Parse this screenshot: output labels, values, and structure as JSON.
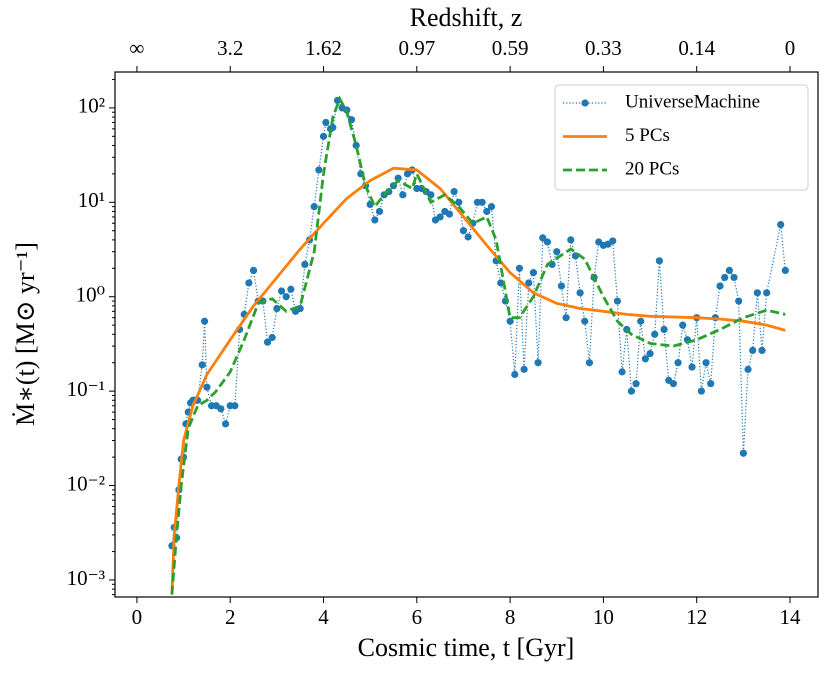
{
  "chart_data": {
    "type": "line",
    "xlabel": "Cosmic time, t [Gyr]",
    "ylabel": "Ṁ∗(t) [M⊙ yr⁻¹]",
    "xlim": [
      -0.47,
      14.6
    ],
    "ylim": [
      0.00066,
      240
    ],
    "log_y": true,
    "xticks": [
      0,
      2,
      4,
      6,
      8,
      10,
      12,
      14
    ],
    "yticks": [
      {
        "value": 0.001,
        "label": "10⁻³"
      },
      {
        "value": 0.01,
        "label": "10⁻²"
      },
      {
        "value": 0.1,
        "label": "10⁻¹"
      },
      {
        "value": 1,
        "label": "10⁰"
      },
      {
        "value": 10,
        "label": "10¹"
      },
      {
        "value": 100,
        "label": "10²"
      }
    ],
    "top_axis": {
      "label": "Redshift, z",
      "ticks": [
        {
          "value": 0,
          "label": "∞"
        },
        {
          "value": 2,
          "label": "3.2"
        },
        {
          "value": 4,
          "label": "1.62"
        },
        {
          "value": 6,
          "label": "0.97"
        },
        {
          "value": 8,
          "label": "0.59"
        },
        {
          "value": 10,
          "label": "0.33"
        },
        {
          "value": 12,
          "label": "0.14"
        },
        {
          "value": 14,
          "label": "0"
        }
      ]
    },
    "legend": "upper right",
    "series": [
      {
        "name": "UniverseMachine",
        "color": "#1f77b4",
        "linestyle": "dotted",
        "marker": "o",
        "x": [
          0.75,
          0.8,
          0.85,
          0.9,
          0.95,
          1.0,
          1.05,
          1.1,
          1.15,
          1.2,
          1.25,
          1.3,
          1.4,
          1.45,
          1.5,
          1.6,
          1.7,
          1.8,
          1.9,
          2.0,
          2.1,
          2.2,
          2.3,
          2.4,
          2.5,
          2.6,
          2.7,
          2.8,
          2.9,
          3.0,
          3.1,
          3.2,
          3.3,
          3.4,
          3.5,
          3.6,
          3.7,
          3.8,
          3.9,
          4.0,
          4.05,
          4.15,
          4.2,
          4.3,
          4.4,
          4.5,
          4.6,
          4.7,
          4.8,
          4.9,
          5.0,
          5.1,
          5.2,
          5.3,
          5.4,
          5.5,
          5.6,
          5.7,
          5.8,
          5.9,
          6.0,
          6.1,
          6.2,
          6.3,
          6.4,
          6.5,
          6.6,
          6.7,
          6.8,
          6.9,
          7.0,
          7.1,
          7.2,
          7.3,
          7.4,
          7.5,
          7.6,
          7.7,
          7.8,
          7.9,
          8.0,
          8.1,
          8.2,
          8.3,
          8.4,
          8.5,
          8.6,
          8.7,
          8.8,
          8.9,
          9.0,
          9.1,
          9.2,
          9.3,
          9.4,
          9.5,
          9.6,
          9.7,
          9.8,
          9.9,
          10.0,
          10.1,
          10.2,
          10.3,
          10.4,
          10.5,
          10.6,
          10.7,
          10.8,
          10.9,
          11.0,
          11.1,
          11.2,
          11.3,
          11.4,
          11.5,
          11.6,
          11.7,
          11.8,
          11.9,
          12.0,
          12.1,
          12.2,
          12.3,
          12.4,
          12.5,
          12.6,
          12.7,
          12.8,
          12.9,
          13.0,
          13.1,
          13.2,
          13.3,
          13.4,
          13.5,
          13.8,
          13.9
        ],
        "values": [
          0.0023,
          0.0036,
          0.0028,
          0.009,
          0.019,
          0.02,
          0.045,
          0.06,
          0.075,
          0.08,
          0.08,
          0.08,
          0.19,
          0.55,
          0.11,
          0.07,
          0.07,
          0.065,
          0.045,
          0.07,
          0.07,
          0.45,
          0.65,
          1.4,
          1.9,
          0.9,
          0.9,
          0.33,
          0.37,
          0.75,
          1.15,
          1.0,
          1.2,
          0.7,
          0.75,
          2.2,
          4.0,
          9.0,
          22,
          50,
          70,
          60,
          62,
          120,
          100,
          95,
          75,
          40,
          20,
          15,
          9.5,
          6.5,
          8,
          12,
          13,
          15,
          18,
          12,
          20,
          22,
          14,
          14,
          13,
          12,
          6.5,
          7,
          8,
          7.5,
          13,
          10,
          5,
          4.3,
          6,
          10,
          10,
          8,
          9,
          2.4,
          1.4,
          0.9,
          0.55,
          0.15,
          2.0,
          0.17,
          1.4,
          1.8,
          0.2,
          4.2,
          3.8,
          2.2,
          3.0,
          1.3,
          0.6,
          4.0,
          2.7,
          1.1,
          0.55,
          0.2,
          1.6,
          3.8,
          3.5,
          3.6,
          3.9,
          0.9,
          0.16,
          0.45,
          0.1,
          0.12,
          0.55,
          0.22,
          0.25,
          0.4,
          2.4,
          0.45,
          0.13,
          0.12,
          0.2,
          0.5,
          0.35,
          0.18,
          0.6,
          0.1,
          0.2,
          0.12,
          0.6,
          1.3,
          1.6,
          1.9,
          1.6,
          0.9,
          0.022,
          0.17,
          0.27,
          1.1,
          0.27,
          1.1,
          5.8,
          1.9
        ]
      },
      {
        "name": "5 PCs",
        "color": "#ff7f0e",
        "linestyle": "solid",
        "x": [
          0.75,
          0.8,
          0.9,
          1.0,
          1.2,
          1.5,
          2.0,
          2.5,
          3.0,
          3.5,
          4.0,
          4.5,
          5.0,
          5.5,
          6.0,
          6.5,
          7.0,
          7.5,
          8.0,
          8.5,
          9.0,
          9.5,
          10.0,
          10.5,
          11.0,
          12.0,
          12.5,
          13.0,
          13.5,
          13.9
        ],
        "values": [
          0.0007,
          0.003,
          0.01,
          0.03,
          0.07,
          0.15,
          0.35,
          0.8,
          1.6,
          3.2,
          6.0,
          11,
          17,
          23,
          22,
          14,
          7,
          3.5,
          1.8,
          1.1,
          0.85,
          0.75,
          0.7,
          0.65,
          0.62,
          0.6,
          0.58,
          0.55,
          0.5,
          0.44
        ]
      },
      {
        "name": "20 PCs",
        "color": "#2ca02c",
        "linestyle": "dashed",
        "x": [
          0.75,
          0.85,
          0.95,
          1.1,
          1.3,
          1.5,
          1.7,
          2.0,
          2.3,
          2.6,
          2.9,
          3.2,
          3.5,
          3.8,
          4.0,
          4.2,
          4.35,
          4.5,
          4.7,
          4.9,
          5.1,
          5.3,
          5.6,
          5.9,
          6.0,
          6.3,
          6.6,
          6.9,
          7.2,
          7.5,
          7.7,
          8.0,
          8.2,
          8.5,
          8.8,
          9.3,
          9.6,
          10.0,
          10.3,
          10.6,
          11.0,
          11.5,
          12.0,
          12.5,
          13.0,
          13.5,
          13.9
        ],
        "values": [
          0.0007,
          0.003,
          0.01,
          0.04,
          0.07,
          0.08,
          0.1,
          0.16,
          0.35,
          0.85,
          0.95,
          0.7,
          0.8,
          3,
          20,
          80,
          125,
          90,
          40,
          15,
          9,
          12,
          17,
          14,
          20,
          10,
          12,
          9,
          6,
          7,
          4,
          0.6,
          0.6,
          1,
          2.2,
          3.2,
          2.5,
          1.0,
          0.55,
          0.4,
          0.32,
          0.3,
          0.35,
          0.45,
          0.6,
          0.72,
          0.65
        ]
      }
    ]
  }
}
